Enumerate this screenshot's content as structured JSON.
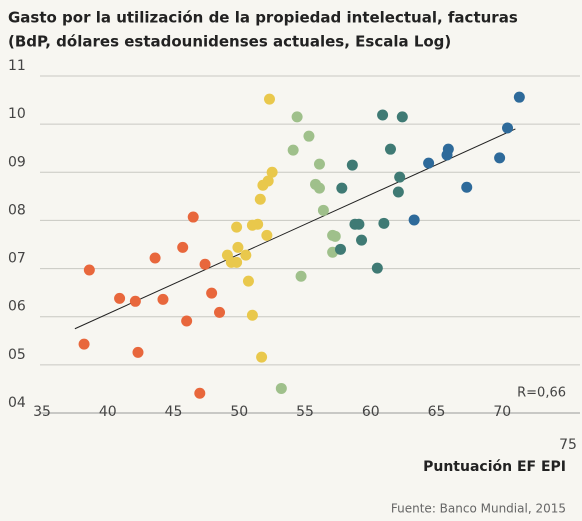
{
  "chart_data": {
    "type": "scatter",
    "title": [
      "Gasto por la utilización de la propiedad intelectual, facturas",
      "(BdP, dólares estadounidenses actuales, Escala Log)"
    ],
    "x_label": "Puntuación EF EPI",
    "source": "Fuente: Banco Mundial, 2015",
    "annotation": "R=0,66",
    "xlim": [
      35,
      75
    ],
    "xticks": [
      35,
      40,
      45,
      50,
      55,
      60,
      65,
      70,
      75
    ],
    "ylim": [
      4,
      11
    ],
    "yticks": [
      {
        "value": 4,
        "label": "04"
      },
      {
        "value": 5,
        "label": "05"
      },
      {
        "value": 6,
        "label": "06"
      },
      {
        "value": 7,
        "label": "07"
      },
      {
        "value": 8,
        "label": "08"
      },
      {
        "value": 9,
        "label": "09"
      },
      10,
      11
    ],
    "grid": true,
    "series": [
      {
        "color": "#e8673c",
        "x": [
          38.6,
          38.2,
          40.9,
          42.1,
          42.3,
          43.6,
          44.2,
          45.7,
          46.0,
          46.5,
          47.4,
          47.9,
          48.5,
          47.0
        ],
        "values": [
          6.97,
          5.43,
          6.38,
          6.32,
          5.26,
          7.22,
          6.36,
          7.44,
          5.91,
          8.07,
          7.09,
          6.49,
          6.09,
          4.41
        ]
      },
      {
        "color": "#e9c84c",
        "x": [
          52.3,
          52.5,
          52.2,
          51.8,
          51.6,
          51.4,
          51.0,
          49.8,
          49.1,
          49.4,
          49.8,
          49.9,
          50.5,
          52.1,
          50.7,
          51.0,
          51.7
        ],
        "values": [
          10.52,
          9.0,
          8.82,
          8.73,
          8.44,
          7.92,
          7.9,
          7.86,
          7.28,
          7.13,
          7.13,
          7.44,
          7.28,
          7.69,
          6.74,
          6.03,
          5.16
        ]
      },
      {
        "color": "#9fc08b",
        "x": [
          54.4,
          54.1,
          55.3,
          56.1,
          55.8,
          56.1,
          56.4,
          57.1,
          57.3,
          57.1,
          54.7,
          53.2
        ],
        "values": [
          10.15,
          9.46,
          9.75,
          9.17,
          8.75,
          8.67,
          8.21,
          7.69,
          7.67,
          7.34,
          6.84,
          4.51
        ]
      },
      {
        "color": "#3f7a74",
        "x": [
          60.9,
          62.4,
          61.5,
          58.6,
          57.8,
          62.2,
          62.1,
          58.8,
          59.1,
          61.0,
          59.3,
          57.7,
          60.5
        ],
        "values": [
          10.19,
          10.15,
          9.48,
          9.15,
          8.67,
          8.9,
          8.59,
          7.92,
          7.92,
          7.94,
          7.59,
          7.4,
          7.01
        ]
      },
      {
        "color": "#2e6a9a",
        "x": [
          71.3,
          70.4,
          64.4,
          65.8,
          65.9,
          69.8,
          67.3,
          63.3
        ],
        "values": [
          10.56,
          9.92,
          9.19,
          9.36,
          9.48,
          9.3,
          8.69,
          8.01
        ]
      }
    ],
    "trendline": {
      "x": [
        37.5,
        71.0
      ],
      "values": [
        5.75,
        9.9
      ],
      "color": "#222"
    }
  }
}
